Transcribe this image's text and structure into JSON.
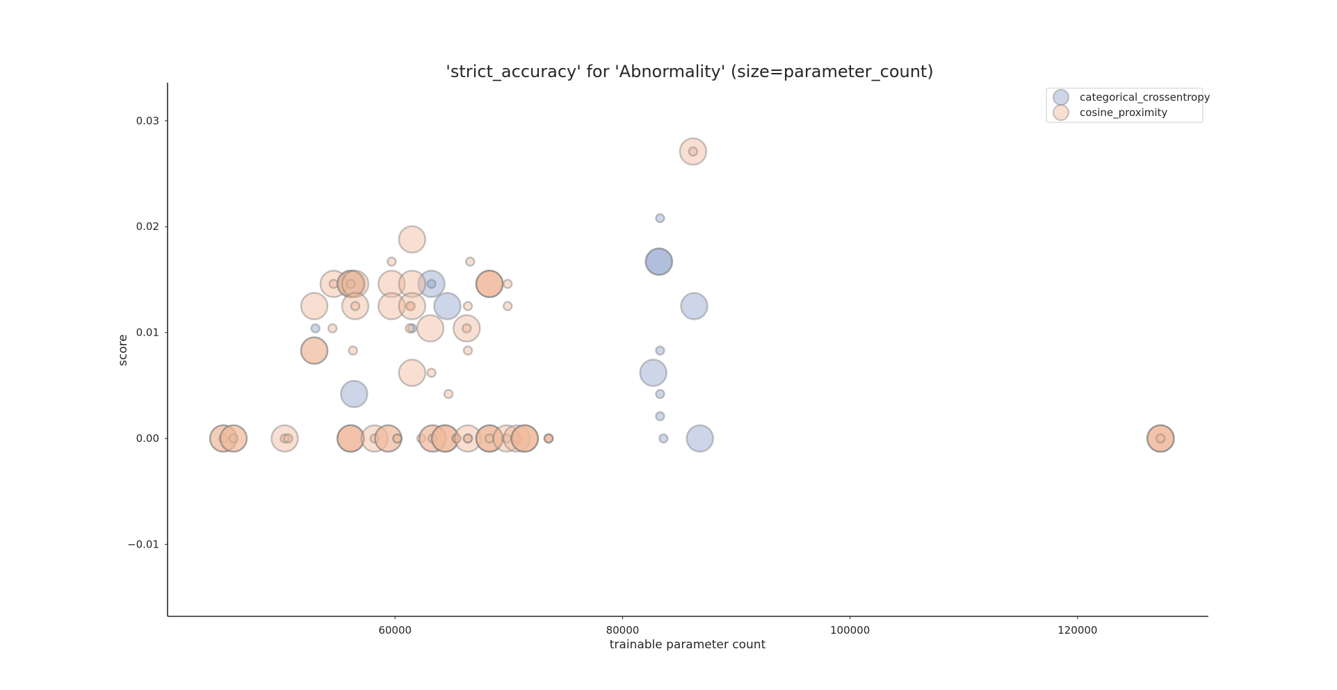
{
  "chart_data": {
    "type": "scatter",
    "title": "'strict_accuracy' for 'Abnormality' (size=parameter_count)",
    "xlabel": "trainable parameter count",
    "ylabel": "score",
    "xlim": [
      40000,
      131500
    ],
    "ylim": [
      -0.0168,
      0.0336
    ],
    "xticks": [
      60000,
      80000,
      100000,
      120000
    ],
    "xtick_labels": [
      "60000",
      "80000",
      "100000",
      "120000"
    ],
    "yticks": [
      -0.01,
      0.0,
      0.01,
      0.02,
      0.03
    ],
    "ytick_labels": [
      "−0.01",
      "0.00",
      "0.01",
      "0.02",
      "0.03"
    ],
    "grid": false,
    "legend_position": "top-right",
    "size_encoding": "parameter_count",
    "series": [
      {
        "name": "categorical_crossentropy",
        "color": "#8fa3cb",
        "points": [
          {
            "x": 53000,
            "y": 0.0104,
            "s": "s"
          },
          {
            "x": 56200,
            "y": 0.0146,
            "s": "l"
          },
          {
            "x": 56400,
            "y": 0.0042,
            "s": "l"
          },
          {
            "x": 61500,
            "y": 0.0104,
            "s": "s"
          },
          {
            "x": 63200,
            "y": 0.0146,
            "s": "l"
          },
          {
            "x": 63200,
            "y": 0.0146,
            "s": "s"
          },
          {
            "x": 64600,
            "y": 0.0125,
            "s": "l"
          },
          {
            "x": 82700,
            "y": 0.0062,
            "s": "l"
          },
          {
            "x": 83200,
            "y": 0.0167,
            "s": "l"
          },
          {
            "x": 83200,
            "y": 0.0167,
            "s": "l"
          },
          {
            "x": 83300,
            "y": 0.0208,
            "s": "s"
          },
          {
            "x": 83300,
            "y": 0.0083,
            "s": "s"
          },
          {
            "x": 83300,
            "y": 0.0042,
            "s": "s"
          },
          {
            "x": 83300,
            "y": 0.0021,
            "s": "s"
          },
          {
            "x": 83600,
            "y": 0.0,
            "s": "s"
          },
          {
            "x": 86300,
            "y": 0.0125,
            "s": "l"
          },
          {
            "x": 86800,
            "y": 0.0,
            "s": "l"
          }
        ]
      },
      {
        "name": "cosine_proximity",
        "color": "#f0b79a",
        "points": [
          {
            "x": 44900,
            "y": 0.0,
            "s": "l"
          },
          {
            "x": 44900,
            "y": 0.0,
            "s": "s"
          },
          {
            "x": 44900,
            "y": 0.0,
            "s": "l"
          },
          {
            "x": 45800,
            "y": 0.0,
            "s": "l"
          },
          {
            "x": 45800,
            "y": 0.0,
            "s": "s"
          },
          {
            "x": 45800,
            "y": 0.0,
            "s": "l"
          },
          {
            "x": 50300,
            "y": 0.0,
            "s": "l"
          },
          {
            "x": 50300,
            "y": 0.0,
            "s": "s"
          },
          {
            "x": 50600,
            "y": 0.0,
            "s": "s"
          },
          {
            "x": 52900,
            "y": 0.0125,
            "s": "l"
          },
          {
            "x": 52900,
            "y": 0.0083,
            "s": "l"
          },
          {
            "x": 52900,
            "y": 0.0083,
            "s": "l"
          },
          {
            "x": 54500,
            "y": 0.0104,
            "s": "s"
          },
          {
            "x": 54600,
            "y": 0.0146,
            "s": "l"
          },
          {
            "x": 54600,
            "y": 0.0146,
            "s": "s"
          },
          {
            "x": 56100,
            "y": 0.0146,
            "s": "l"
          },
          {
            "x": 56100,
            "y": 0.0146,
            "s": "l"
          },
          {
            "x": 56100,
            "y": 0.0146,
            "s": "s"
          },
          {
            "x": 56100,
            "y": 0.0,
            "s": "l"
          },
          {
            "x": 56100,
            "y": 0.0,
            "s": "l"
          },
          {
            "x": 56100,
            "y": 0.0,
            "s": "l"
          },
          {
            "x": 56300,
            "y": 0.0083,
            "s": "s"
          },
          {
            "x": 56500,
            "y": 0.0146,
            "s": "l"
          },
          {
            "x": 56500,
            "y": 0.0125,
            "s": "l"
          },
          {
            "x": 56500,
            "y": 0.0125,
            "s": "s"
          },
          {
            "x": 58200,
            "y": 0.0,
            "s": "l"
          },
          {
            "x": 58200,
            "y": 0.0,
            "s": "s"
          },
          {
            "x": 59400,
            "y": 0.0,
            "s": "l"
          },
          {
            "x": 59400,
            "y": 0.0,
            "s": "l"
          },
          {
            "x": 59700,
            "y": 0.0146,
            "s": "l"
          },
          {
            "x": 59700,
            "y": 0.0125,
            "s": "l"
          },
          {
            "x": 59700,
            "y": 0.0167,
            "s": "s"
          },
          {
            "x": 60200,
            "y": 0.0,
            "s": "s"
          },
          {
            "x": 60200,
            "y": 0.0,
            "s": "s"
          },
          {
            "x": 61300,
            "y": 0.0104,
            "s": "s"
          },
          {
            "x": 61300,
            "y": 0.0125,
            "s": "s"
          },
          {
            "x": 61400,
            "y": 0.0125,
            "s": "s"
          },
          {
            "x": 61500,
            "y": 0.0188,
            "s": "l"
          },
          {
            "x": 61500,
            "y": 0.0146,
            "s": "l"
          },
          {
            "x": 61500,
            "y": 0.0125,
            "s": "l"
          },
          {
            "x": 61500,
            "y": 0.0062,
            "s": "l"
          },
          {
            "x": 62300,
            "y": 0.0,
            "s": "s"
          },
          {
            "x": 63100,
            "y": 0.0104,
            "s": "l"
          },
          {
            "x": 63200,
            "y": 0.0062,
            "s": "s"
          },
          {
            "x": 63300,
            "y": 0.0,
            "s": "l"
          },
          {
            "x": 63300,
            "y": 0.0,
            "s": "l"
          },
          {
            "x": 63300,
            "y": 0.0,
            "s": "s"
          },
          {
            "x": 64400,
            "y": 0.0,
            "s": "l"
          },
          {
            "x": 64400,
            "y": 0.0,
            "s": "l"
          },
          {
            "x": 64400,
            "y": 0.0,
            "s": "l"
          },
          {
            "x": 64700,
            "y": 0.0042,
            "s": "s"
          },
          {
            "x": 65400,
            "y": 0.0,
            "s": "s"
          },
          {
            "x": 65400,
            "y": 0.0,
            "s": "s"
          },
          {
            "x": 66300,
            "y": 0.0104,
            "s": "l"
          },
          {
            "x": 66300,
            "y": 0.0104,
            "s": "s"
          },
          {
            "x": 66400,
            "y": 0.0125,
            "s": "s"
          },
          {
            "x": 66400,
            "y": 0.0083,
            "s": "s"
          },
          {
            "x": 66400,
            "y": 0.0,
            "s": "l"
          },
          {
            "x": 66400,
            "y": 0.0,
            "s": "s"
          },
          {
            "x": 66400,
            "y": 0.0,
            "s": "s"
          },
          {
            "x": 66600,
            "y": 0.0167,
            "s": "s"
          },
          {
            "x": 68300,
            "y": 0.0146,
            "s": "l"
          },
          {
            "x": 68300,
            "y": 0.0146,
            "s": "l"
          },
          {
            "x": 68300,
            "y": 0.0146,
            "s": "l"
          },
          {
            "x": 68300,
            "y": 0.0,
            "s": "l"
          },
          {
            "x": 68300,
            "y": 0.0,
            "s": "l"
          },
          {
            "x": 68300,
            "y": 0.0,
            "s": "l"
          },
          {
            "x": 68300,
            "y": 0.0,
            "s": "s"
          },
          {
            "x": 69800,
            "y": 0.0,
            "s": "l"
          },
          {
            "x": 69800,
            "y": 0.0,
            "s": "s"
          },
          {
            "x": 69900,
            "y": 0.0146,
            "s": "s"
          },
          {
            "x": 69900,
            "y": 0.0125,
            "s": "s"
          },
          {
            "x": 70700,
            "y": 0.0,
            "s": "l"
          },
          {
            "x": 70700,
            "y": 0.0,
            "s": "s"
          },
          {
            "x": 71400,
            "y": 0.0,
            "s": "l"
          },
          {
            "x": 71400,
            "y": 0.0,
            "s": "l"
          },
          {
            "x": 71400,
            "y": 0.0,
            "s": "l"
          },
          {
            "x": 73500,
            "y": 0.0,
            "s": "s"
          },
          {
            "x": 73500,
            "y": 0.0,
            "s": "s"
          },
          {
            "x": 73500,
            "y": 0.0,
            "s": "s"
          },
          {
            "x": 86200,
            "y": 0.0271,
            "s": "l"
          },
          {
            "x": 86200,
            "y": 0.0271,
            "s": "s"
          },
          {
            "x": 127300,
            "y": 0.0,
            "s": "l"
          },
          {
            "x": 127300,
            "y": 0.0,
            "s": "l"
          },
          {
            "x": 127300,
            "y": 0.0,
            "s": "l"
          },
          {
            "x": 127300,
            "y": 0.0,
            "s": "s"
          }
        ]
      }
    ]
  }
}
